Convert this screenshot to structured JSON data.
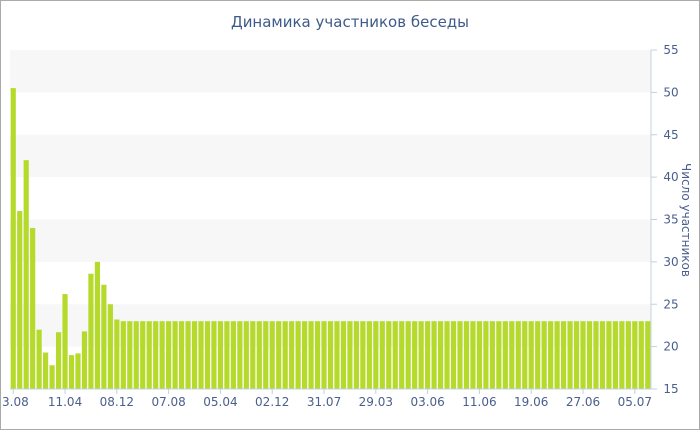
{
  "chart_data": {
    "type": "bar",
    "title": "Динамика участников беседы",
    "y_label": "Число участников",
    "categories": [
      "3.08",
      null,
      null,
      null,
      null,
      null,
      null,
      null,
      "11.04",
      null,
      null,
      null,
      null,
      null,
      null,
      null,
      "08.12",
      null,
      null,
      null,
      null,
      null,
      null,
      null,
      "07.08",
      null,
      null,
      null,
      null,
      null,
      null,
      null,
      "05.04",
      null,
      null,
      null,
      null,
      null,
      null,
      null,
      "02.12",
      null,
      null,
      null,
      null,
      null,
      null,
      null,
      "31.07",
      null,
      null,
      null,
      null,
      null,
      null,
      null,
      "29.03",
      null,
      null,
      null,
      null,
      null,
      null,
      null,
      "03.06",
      null,
      null,
      null,
      null,
      null,
      null,
      null,
      "11.06",
      null,
      null,
      null,
      null,
      null,
      null,
      null,
      "19.06",
      null,
      null,
      null,
      null,
      null,
      null,
      null,
      "27.06",
      null,
      null,
      null,
      null,
      null,
      null,
      null,
      "05.07",
      null,
      null
    ],
    "values": [
      50.5,
      36,
      42,
      34,
      22,
      19.3,
      17.8,
      21.7,
      26.2,
      19,
      19.2,
      21.8,
      28.6,
      30,
      27.3,
      25,
      23.2,
      23,
      23,
      23,
      23,
      23,
      23,
      23,
      23,
      23,
      23,
      23,
      23,
      23,
      23,
      23,
      23,
      23,
      23,
      23,
      23,
      23,
      23,
      23,
      23,
      23,
      23,
      23,
      23,
      23,
      23,
      23,
      23,
      23,
      23,
      23,
      23,
      23,
      23,
      23,
      23,
      23,
      23,
      23,
      23,
      23,
      23,
      23,
      23,
      23,
      23,
      23,
      23,
      23,
      23,
      23,
      23,
      23,
      23,
      23,
      23,
      23,
      23,
      23,
      23,
      23,
      23,
      23,
      23,
      23,
      23,
      23,
      23,
      23,
      23,
      23,
      23,
      23,
      23,
      23,
      23,
      23,
      23
    ],
    "color": "#b5da2c",
    "ylim": [
      15,
      55
    ],
    "yticks": [
      15,
      20,
      25,
      30,
      35,
      40,
      45,
      50,
      55
    ],
    "y_axis_side": "right",
    "alternate_bands": true
  }
}
